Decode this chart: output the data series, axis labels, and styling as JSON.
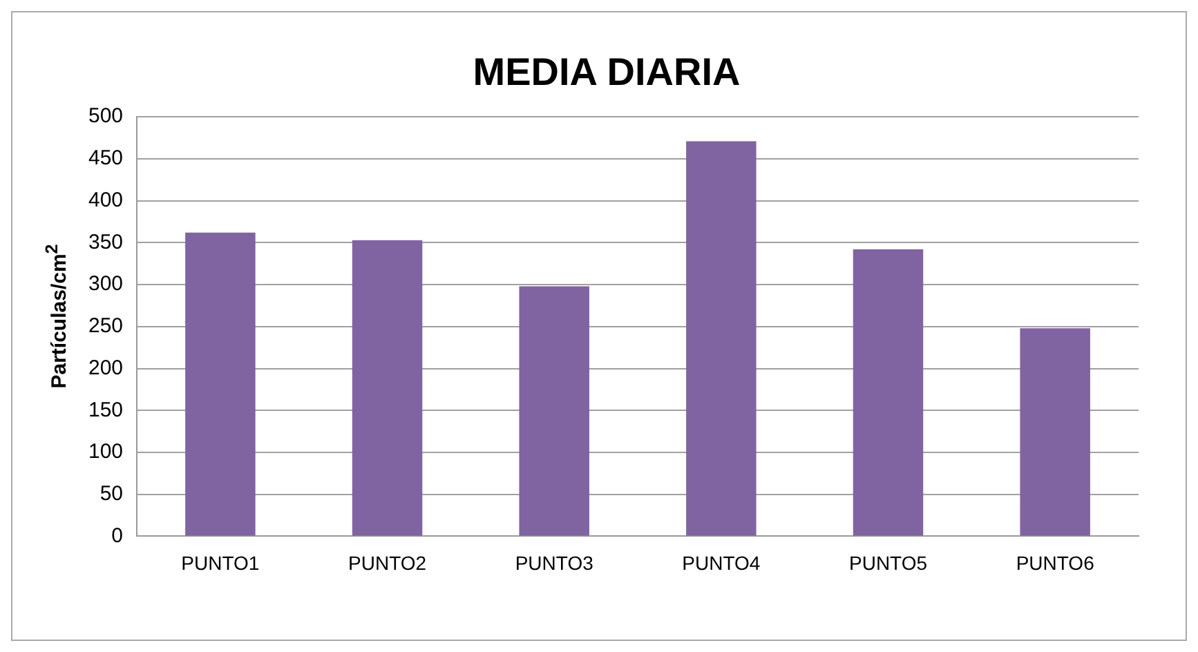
{
  "chart_data": {
    "type": "bar",
    "title": "MEDIA DIARIA",
    "ylabel": "Partículas/cm$^{2}$",
    "categories": [
      "PUNTO1",
      "PUNTO2",
      "PUNTO3",
      "PUNTO4",
      "PUNTO5",
      "PUNTO6"
    ],
    "values": [
      362,
      353,
      298,
      471,
      342,
      248
    ],
    "color": "#8064a2",
    "ylim": [
      0,
      500
    ],
    "yticks": [
      0,
      50,
      100,
      150,
      200,
      250,
      300,
      350,
      400,
      450,
      500
    ],
    "grid": "y",
    "legend": false
  }
}
